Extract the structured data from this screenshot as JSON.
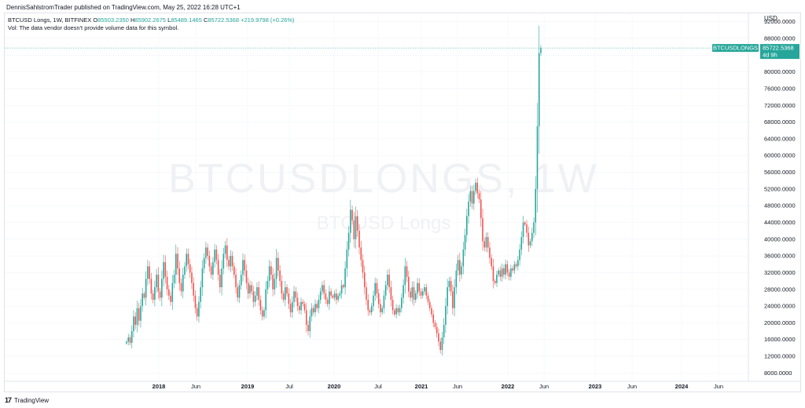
{
  "header": {
    "publish_line": "DennisSahlstromTrader published on TradingView.com, May 25, 2022 16:28 UTC+1"
  },
  "legend": {
    "symbol_line": "BTCUSD Longs, 1W, BITFINEX",
    "open_label": "O",
    "open": "85503.2350",
    "high_label": "H",
    "high": "85902.2675",
    "low_label": "L",
    "low": "85489.1465",
    "close_label": "C",
    "close": "85722.5368",
    "change": "+219.9798 (+0.26%)",
    "vol_note": "Vol: The data vendor doesn't provide volume data for this symbol."
  },
  "watermark": {
    "main": "BTCUSDLONGS, 1W",
    "sub": "BTCUSD Longs"
  },
  "price_tags": {
    "symbol_tag": "BTCUSDLONGS",
    "price": "85722.5368",
    "countdown": "4d 9h"
  },
  "footer": {
    "brand": "TradingView"
  },
  "colors": {
    "up": "#26a69a",
    "down": "#ef5350",
    "tag_bg": "#26a69a",
    "grid": "#f0f3fa",
    "axis_text": "#131722"
  },
  "chart_data": {
    "type": "candlestick",
    "currency": "USD",
    "ylim": [
      6000,
      94000
    ],
    "y_ticks": [
      "8000.0000",
      "12000.0000",
      "16000.0000",
      "20000.0000",
      "24000.0000",
      "28000.0000",
      "32000.0000",
      "36000.0000",
      "40000.0000",
      "44000.0000",
      "48000.0000",
      "52000.0000",
      "56000.0000",
      "60000.0000",
      "64000.0000",
      "68000.0000",
      "72000.0000",
      "76000.0000",
      "80000.0000",
      "84000.0000",
      "88000.0000",
      "92000.0000"
    ],
    "x_ticks": [
      {
        "label": "2018",
        "year": true
      },
      {
        "label": "Jun",
        "year": false
      },
      {
        "label": "2019",
        "year": true
      },
      {
        "label": "Jul",
        "year": false
      },
      {
        "label": "2020",
        "year": true
      },
      {
        "label": "Jul",
        "year": false
      },
      {
        "label": "2021",
        "year": true
      },
      {
        "label": "Jun",
        "year": false
      },
      {
        "label": "2022",
        "year": true
      },
      {
        "label": "Jun",
        "year": false
      },
      {
        "label": "2023",
        "year": true
      },
      {
        "label": "Jun",
        "year": false
      },
      {
        "label": "2024",
        "year": true
      },
      {
        "label": "Jun",
        "year": false
      }
    ],
    "last_price": 85722.5368,
    "series_closes": [
      15500,
      16500,
      15200,
      18000,
      21500,
      19500,
      23500,
      20500,
      24000,
      27000,
      26000,
      30500,
      33500,
      30500,
      27000,
      25500,
      28500,
      31500,
      27500,
      26000,
      30500,
      34500,
      31000,
      28000,
      26500,
      25000,
      29500,
      31500,
      36500,
      33000,
      29500,
      27500,
      31500,
      33500,
      36500,
      34000,
      32000,
      29500,
      26500,
      23500,
      21500,
      25000,
      28500,
      33000,
      35500,
      38000,
      36000,
      33500,
      31500,
      34500,
      37500,
      35000,
      31500,
      28500,
      33000,
      36500,
      38500,
      35000,
      33500,
      36000,
      33500,
      31500,
      28500,
      26000,
      29000,
      31500,
      35000,
      32500,
      29500,
      27000,
      29000,
      27500,
      25000,
      26500,
      28500,
      25500,
      23000,
      21500,
      23000,
      28000,
      30000,
      33500,
      31500,
      28000,
      30500,
      35500,
      32500,
      30000,
      27000,
      25500,
      28500,
      27000,
      24500,
      22500,
      25000,
      27500,
      26000,
      24000,
      23000,
      25000,
      24500,
      23000,
      19500,
      18000,
      21500,
      23500,
      22500,
      24500,
      23500,
      25500,
      27500,
      29000,
      27000,
      25500,
      24500,
      27500,
      26500,
      26000,
      27000,
      25500,
      26500,
      27000,
      29000,
      28500,
      33000,
      37500,
      41500,
      47000,
      44500,
      40000,
      45500,
      42000,
      38000,
      35000,
      32000,
      28500,
      25500,
      23000,
      22500,
      24000,
      26500,
      29500,
      27000,
      24500,
      22500,
      23500,
      26500,
      29000,
      31500,
      28500,
      25500,
      23000,
      22000,
      23500,
      22500,
      23500,
      26000,
      29000,
      33500,
      31000,
      27500,
      26000,
      28500,
      25500,
      27000,
      29500,
      27500,
      26500,
      27500,
      28500,
      26500,
      25000,
      23500,
      22000,
      20000,
      19000,
      17500,
      15500,
      13500,
      16500,
      19500,
      24000,
      28500,
      30000,
      27500,
      23500,
      28500,
      32500,
      35000,
      31500,
      33500,
      37500,
      41000,
      45500,
      49000,
      51500,
      48500,
      51500,
      53500,
      51000,
      49500,
      45000,
      39500,
      38000,
      40500,
      38000,
      35500,
      33500,
      30000,
      29500,
      31500,
      32500,
      31000,
      33000,
      31500,
      34000,
      32000,
      31000,
      33000,
      32500,
      34000,
      33500,
      35000,
      37500,
      40500,
      44000,
      43500,
      41500,
      38500,
      39500,
      41500,
      44000,
      52000,
      67000,
      84500,
      85722.5368
    ]
  }
}
